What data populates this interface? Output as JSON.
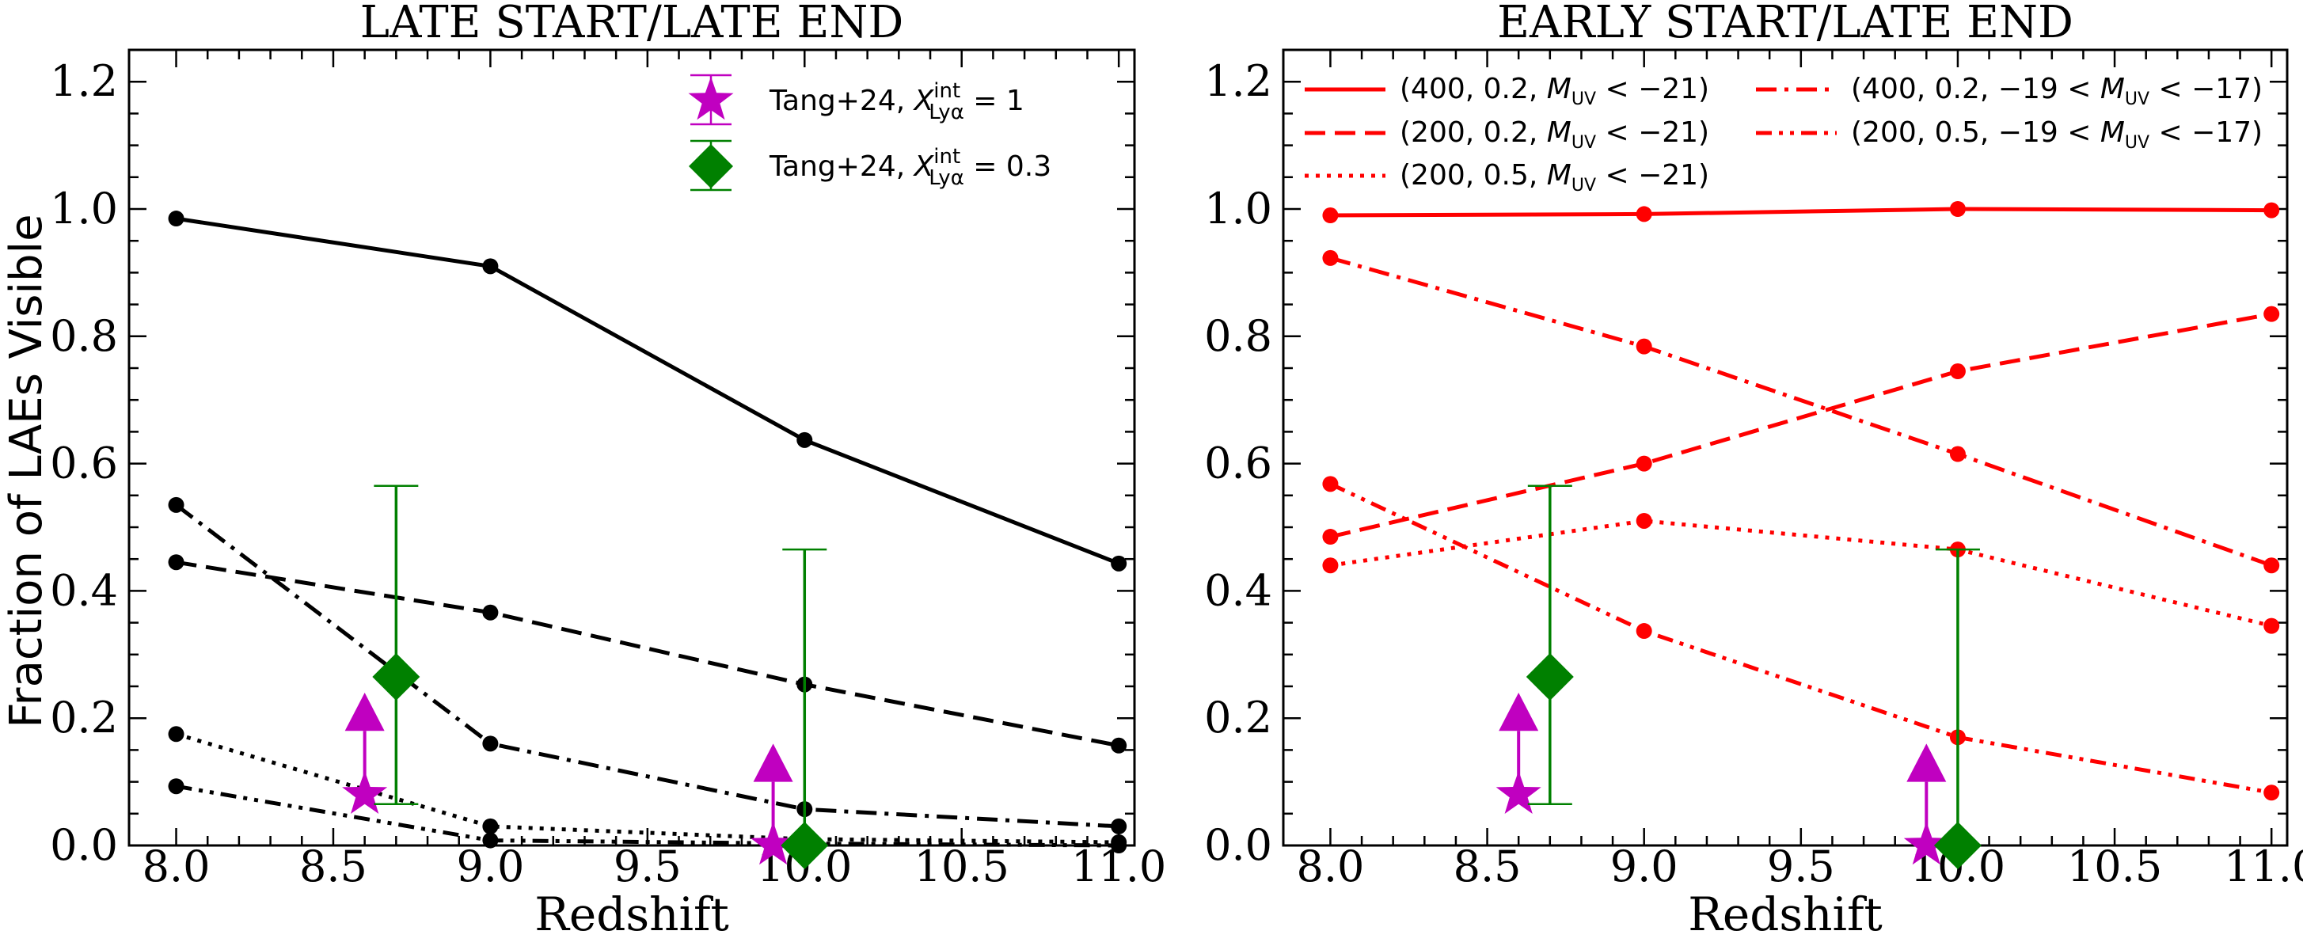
{
  "figure": {
    "y_axis_label": "Fraction of LAEs Visible"
  },
  "chart_data": [
    {
      "type": "line",
      "title": "LATE START/LATE END",
      "xlabel": "Redshift",
      "ylabel": "Fraction of LAEs Visible",
      "xlim": [
        7.85,
        11.05
      ],
      "ylim": [
        0.0,
        1.25
      ],
      "xticks": [
        "8.0",
        "8.5",
        "9.0",
        "9.5",
        "10.0",
        "10.5",
        "11.0"
      ],
      "yticks": [
        "0.0",
        "0.2",
        "0.4",
        "0.6",
        "0.8",
        "1.0",
        "1.2"
      ],
      "color": "#000000",
      "marker_color": "#000000",
      "series": [
        {
          "name": "(400, 0.2, M_UV < -21)",
          "style": "solid",
          "x": [
            8,
            9,
            10,
            11
          ],
          "y": [
            0.985,
            0.91,
            0.637,
            0.443
          ]
        },
        {
          "name": "(200, 0.2, M_UV < -21)",
          "style": "dashed",
          "x": [
            8,
            9,
            10,
            11
          ],
          "y": [
            0.445,
            0.366,
            0.253,
            0.157
          ]
        },
        {
          "name": "(200, 0.5, M_UV < -21)",
          "style": "dotted",
          "x": [
            8,
            9,
            10,
            11
          ],
          "y": [
            0.175,
            0.03,
            0.01,
            0.005
          ]
        },
        {
          "name": "(400, 0.2, -19 < M_UV < -17)",
          "style": "dashdot",
          "x": [
            8,
            9,
            10,
            11
          ],
          "y": [
            0.535,
            0.16,
            0.057,
            0.03
          ]
        },
        {
          "name": "(200, 0.5, -19 < M_UV < -17)",
          "style": "dashdotdot",
          "x": [
            8,
            9,
            10,
            11
          ],
          "y": [
            0.093,
            0.008,
            0.003,
            0.0
          ]
        }
      ],
      "observations": [
        {
          "name": "Tang+24, X_Lyα^int = 1",
          "marker": "star",
          "color": "#c000c0",
          "x": [
            8.6,
            9.9
          ],
          "y": [
            0.08,
            0.0
          ],
          "lower_limit": true,
          "arrow_length": 0.12
        },
        {
          "name": "Tang+24, X_Lyα^int = 0.3",
          "marker": "diamond",
          "color": "#008000",
          "x": [
            8.7,
            10.0
          ],
          "y": [
            0.265,
            0.0
          ],
          "yerr_upper": [
            0.565,
            0.465
          ],
          "yerr_lower": [
            0.065,
            0.0
          ]
        }
      ],
      "legend": {
        "placement": "top-right",
        "entries": [
          {
            "key": "tang1",
            "prefix": "Tang+24, ",
            "sym": "X",
            "sup": "int",
            "sub": "Lyα",
            "suffix": " = 1"
          },
          {
            "key": "tang03",
            "prefix": "Tang+24, ",
            "sym": "X",
            "sup": "int",
            "sub": "Lyα",
            "suffix": " = 0.3"
          }
        ]
      }
    },
    {
      "type": "line",
      "title": "EARLY START/LATE END",
      "xlabel": "Redshift",
      "ylabel": "",
      "xlim": [
        7.85,
        11.05
      ],
      "ylim": [
        0.0,
        1.25
      ],
      "xticks": [
        "8.0",
        "8.5",
        "9.0",
        "9.5",
        "10.0",
        "10.5",
        "11.0"
      ],
      "yticks": [
        "0.0",
        "0.2",
        "0.4",
        "0.6",
        "0.8",
        "1.0",
        "1.2"
      ],
      "color": "#ff0000",
      "marker_color": "#ff0000",
      "series": [
        {
          "name": "(400, 0.2, M_UV < -21)",
          "style": "solid",
          "x": [
            8,
            9,
            10,
            11
          ],
          "y": [
            0.99,
            0.992,
            1.0,
            0.998
          ]
        },
        {
          "name": "(200, 0.2, M_UV < -21)",
          "style": "dashed",
          "x": [
            8,
            9,
            10,
            11
          ],
          "y": [
            0.485,
            0.6,
            0.745,
            0.835
          ]
        },
        {
          "name": "(200, 0.5, M_UV < -21)",
          "style": "dotted",
          "x": [
            8,
            9,
            10,
            11
          ],
          "y": [
            0.44,
            0.51,
            0.465,
            0.345
          ]
        },
        {
          "name": "(400, 0.2, -19 < M_UV < -17)",
          "style": "dashdot",
          "x": [
            8,
            9,
            10,
            11
          ],
          "y": [
            0.923,
            0.784,
            0.615,
            0.44
          ]
        },
        {
          "name": "(200, 0.5, -19 < M_UV < -17)",
          "style": "dashdotdot",
          "x": [
            8,
            9,
            10,
            11
          ],
          "y": [
            0.568,
            0.337,
            0.17,
            0.083
          ]
        }
      ],
      "observations": [
        {
          "name": "Tang+24, X_Lyα^int = 1",
          "marker": "star",
          "color": "#c000c0",
          "x": [
            8.6,
            9.9
          ],
          "y": [
            0.08,
            0.0
          ],
          "lower_limit": true,
          "arrow_length": 0.12
        },
        {
          "name": "Tang+24, X_Lyα^int = 0.3",
          "marker": "diamond",
          "color": "#008000",
          "x": [
            8.7,
            10.0
          ],
          "y": [
            0.265,
            0.0
          ],
          "yerr_upper": [
            0.565,
            0.465
          ],
          "yerr_lower": [
            0.065,
            0.0
          ]
        }
      ],
      "legend": {
        "placement": "top",
        "entries": [
          {
            "key": "s400_02_bright",
            "style": "solid",
            "pre": "(400, 0.2, ",
            "range_pre": "",
            "sym": "M",
            "sub": "UV",
            "post": " < −21)"
          },
          {
            "key": "s400_02_faint",
            "style": "dashdot",
            "pre": "(400, 0.2, ",
            "range_pre": "−19 < ",
            "sym": "M",
            "sub": "UV",
            "post": " < −17)"
          },
          {
            "key": "s200_02_bright",
            "style": "dashed",
            "pre": "(200, 0.2, ",
            "range_pre": "",
            "sym": "M",
            "sub": "UV",
            "post": " < −21)"
          },
          {
            "key": "s200_05_faint",
            "style": "dashdotdot",
            "pre": "(200, 0.5, ",
            "range_pre": "−19 < ",
            "sym": "M",
            "sub": "UV",
            "post": " < −17)"
          },
          {
            "key": "s200_05_bright",
            "style": "dotted",
            "pre": "(200, 0.5, ",
            "range_pre": "",
            "sym": "M",
            "sub": "UV",
            "post": " < −21)"
          }
        ]
      }
    }
  ]
}
